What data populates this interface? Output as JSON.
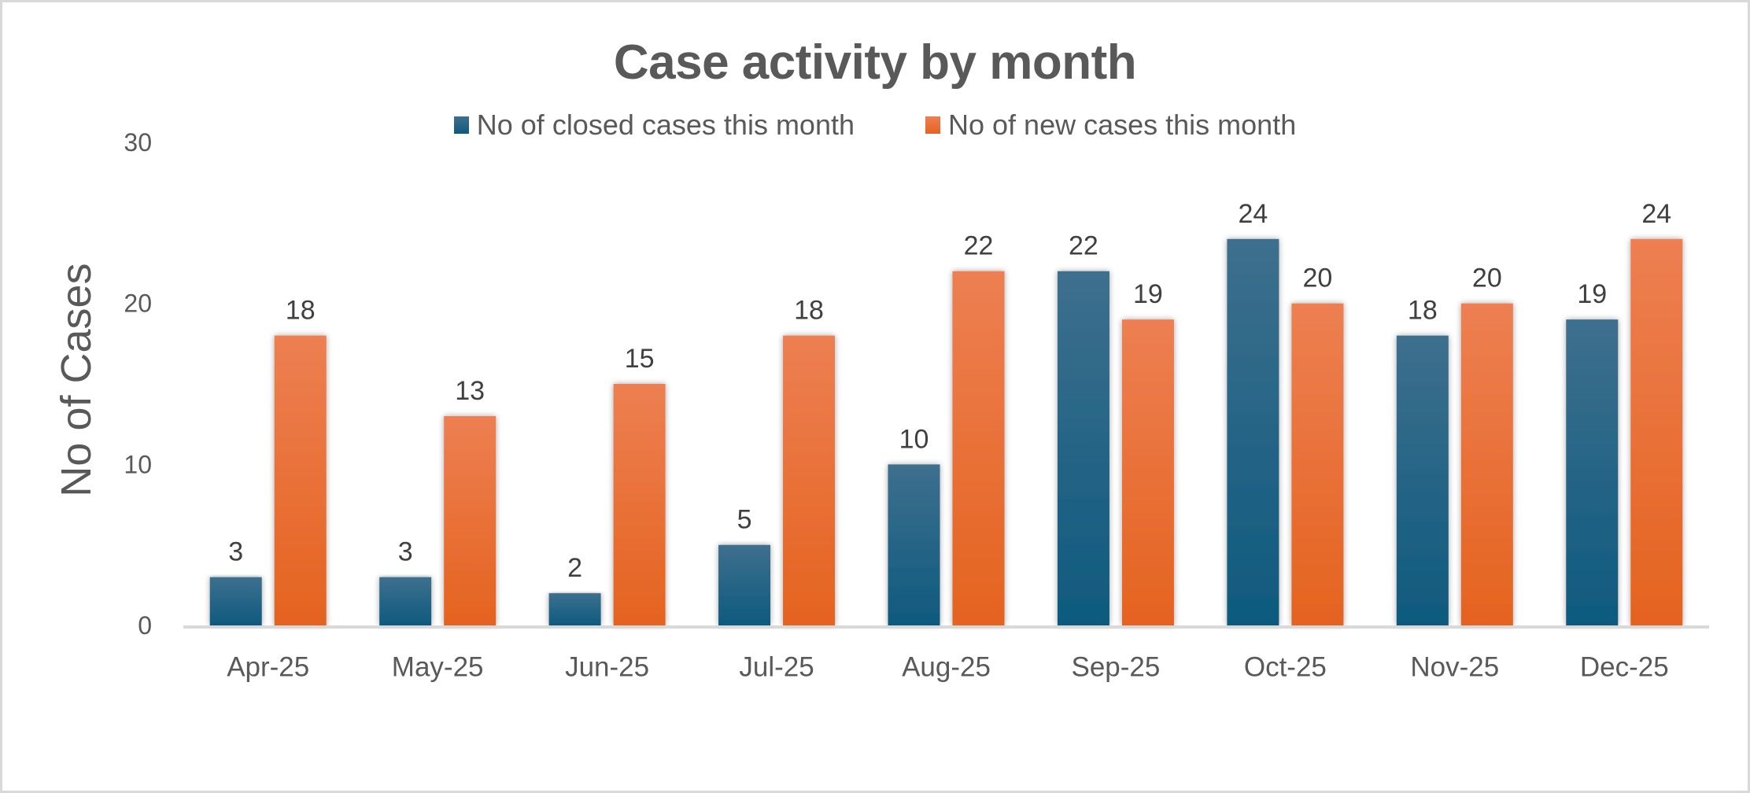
{
  "chart_data": {
    "type": "bar",
    "title": "Case activity by month",
    "xlabel": "",
    "ylabel": "No of Cases",
    "ylim": [
      0,
      30
    ],
    "yticks": [
      0,
      10,
      20,
      30
    ],
    "grid": false,
    "legend_position": "top-center",
    "categories": [
      "Apr-25",
      "May-25",
      "Jun-25",
      "Jul-25",
      "Aug-25",
      "Sep-25",
      "Oct-25",
      "Nov-25",
      "Dec-25"
    ],
    "series": [
      {
        "name": "No of closed cases this month",
        "color_top": "#3E6F8E",
        "color_bottom": "#0E5A7E",
        "values": [
          3,
          3,
          2,
          5,
          10,
          22,
          24,
          18,
          19
        ]
      },
      {
        "name": "No of new cases this month",
        "color_top": "#ED7F52",
        "color_bottom": "#E5631F",
        "values": [
          18,
          13,
          15,
          18,
          22,
          19,
          20,
          20,
          24
        ]
      }
    ],
    "data_labels": true
  }
}
